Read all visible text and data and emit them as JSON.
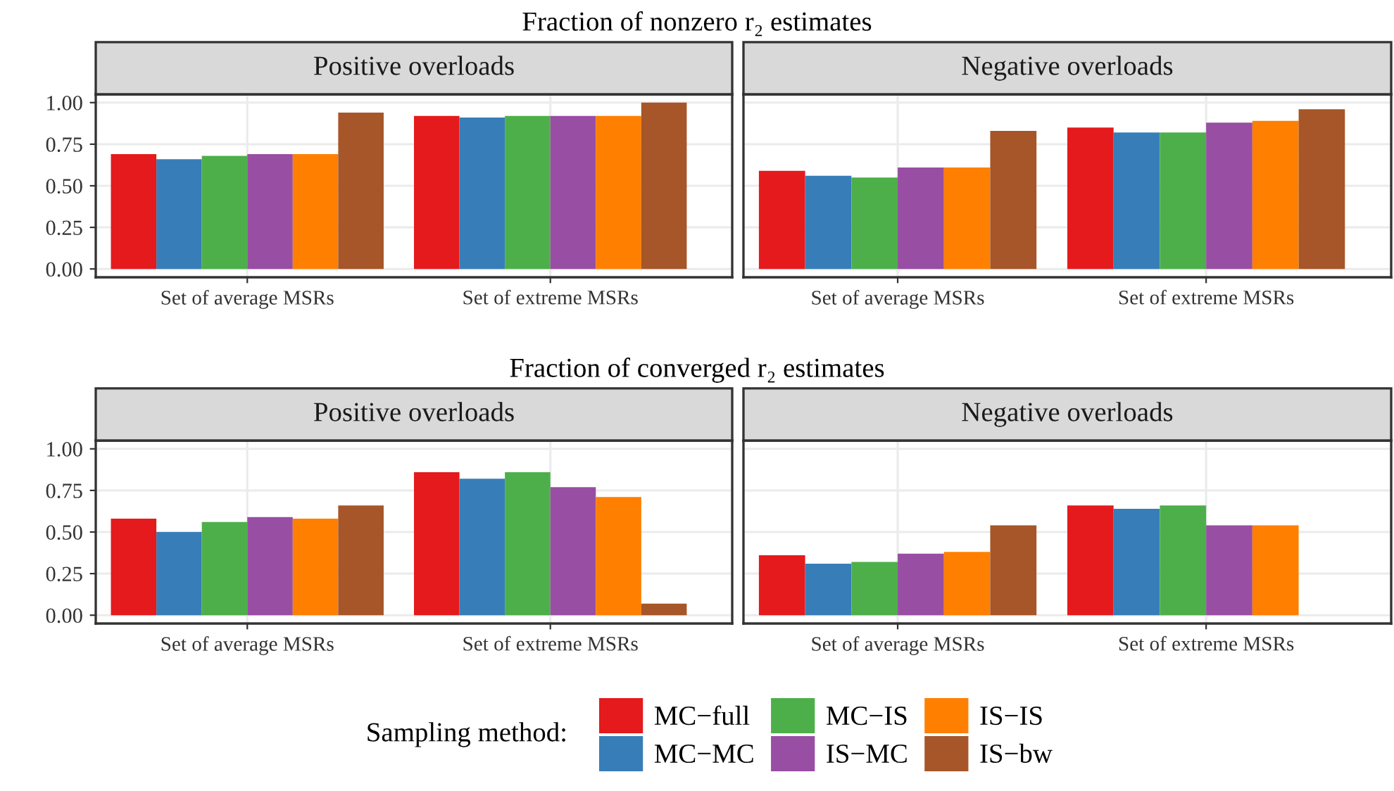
{
  "chart_data": [
    {
      "type": "bar",
      "title": "Fraction of nonzero r₂ estimates",
      "subtitle": "Positive overloads",
      "categories": [
        "Set of average MSRs",
        "Set of extreme MSRs"
      ],
      "ylim": [
        -0.05,
        1.05
      ],
      "yticks": [
        {
          "value": 0,
          "label": "0.00"
        },
        {
          "value": 0.25,
          "label": "0.25"
        },
        {
          "value": 0.5,
          "label": "0.50"
        },
        {
          "value": 0.75,
          "label": "0.75"
        },
        {
          "value": 1,
          "label": "1.00"
        }
      ],
      "grid": true,
      "legend": "bottom",
      "legend_title": "Sampling method:",
      "series": [
        {
          "name": "MC−full",
          "color": "#e41a1c",
          "values": [
            0.69,
            0.92
          ]
        },
        {
          "name": "MC−MC",
          "color": "#377eb8",
          "values": [
            0.66,
            0.91
          ]
        },
        {
          "name": "MC−IS",
          "color": "#4daf4a",
          "values": [
            0.68,
            0.92
          ]
        },
        {
          "name": "IS−MC",
          "color": "#984ea3",
          "values": [
            0.69,
            0.92
          ]
        },
        {
          "name": "IS−IS",
          "color": "#ff7f00",
          "values": [
            0.69,
            0.92
          ]
        },
        {
          "name": "IS−bw",
          "color": "#a65628",
          "values": [
            0.94,
            1.0
          ]
        }
      ]
    },
    {
      "type": "bar",
      "subtitle": "Negative overloads",
      "categories": [
        "Set of average MSRs",
        "Set of extreme MSRs"
      ],
      "ylim": [
        -0.05,
        1.05
      ],
      "yticks": [
        {
          "value": 0,
          "label": null
        },
        {
          "value": 0.25,
          "label": null
        },
        {
          "value": 0.5,
          "label": null
        },
        {
          "value": 0.75,
          "label": null
        },
        {
          "value": 1,
          "label": null
        }
      ],
      "grid": true,
      "tick_labels": "x",
      "series": [
        {
          "color": "#e41a1c",
          "values": [
            0.59,
            0.85
          ]
        },
        {
          "color": "#377eb8",
          "values": [
            0.56,
            0.82
          ]
        },
        {
          "color": "#4daf4a",
          "values": [
            0.55,
            0.82
          ]
        },
        {
          "color": "#984ea3",
          "values": [
            0.61,
            0.88
          ]
        },
        {
          "color": "#ff7f00",
          "values": [
            0.61,
            0.89
          ]
        },
        {
          "color": "#a65628",
          "values": [
            0.83,
            0.96
          ]
        }
      ]
    },
    {
      "type": "bar",
      "title": "Fraction of converged r₂ estimates",
      "subtitle": "Positive overloads",
      "categories": [
        "Set of average MSRs",
        "Set of extreme MSRs"
      ],
      "ylim": [
        -0.05,
        1.05
      ],
      "yticks": [
        {
          "value": 0,
          "label": "0.00"
        },
        {
          "value": 0.25,
          "label": "0.25"
        },
        {
          "value": 0.5,
          "label": "0.50"
        },
        {
          "value": 0.75,
          "label": "0.75"
        },
        {
          "value": 1,
          "label": "1.00"
        }
      ],
      "grid": true,
      "series": [
        {
          "color": "#e41a1c",
          "values": [
            0.58,
            0.86
          ]
        },
        {
          "color": "#377eb8",
          "values": [
            0.5,
            0.82
          ]
        },
        {
          "color": "#4daf4a",
          "values": [
            0.56,
            0.86
          ]
        },
        {
          "color": "#984ea3",
          "values": [
            0.59,
            0.77
          ]
        },
        {
          "color": "#ff7f00",
          "values": [
            0.58,
            0.71
          ]
        },
        {
          "color": "#a65628",
          "values": [
            0.66,
            0.07
          ]
        }
      ]
    },
    {
      "type": "bar",
      "subtitle": "Negative overloads",
      "categories": [
        "Set of average MSRs",
        "Set of extreme MSRs"
      ],
      "ylim": [
        -0.05,
        1.05
      ],
      "yticks": [
        {
          "value": 0,
          "label": null
        },
        {
          "value": 0.25,
          "label": null
        },
        {
          "value": 0.5,
          "label": null
        },
        {
          "value": 0.75,
          "label": null
        },
        {
          "value": 1,
          "label": null
        }
      ],
      "grid": true,
      "tick_labels": "x",
      "series": [
        {
          "color": "#e41a1c",
          "values": [
            0.36,
            0.66
          ]
        },
        {
          "color": "#377eb8",
          "values": [
            0.31,
            0.64
          ]
        },
        {
          "color": "#4daf4a",
          "values": [
            0.32,
            0.66
          ]
        },
        {
          "color": "#984ea3",
          "values": [
            0.37,
            0.54
          ]
        },
        {
          "color": "#ff7f00",
          "values": [
            0.38,
            0.54
          ]
        },
        {
          "color": "#a65628",
          "values": [
            0.54,
            null
          ]
        }
      ]
    }
  ]
}
